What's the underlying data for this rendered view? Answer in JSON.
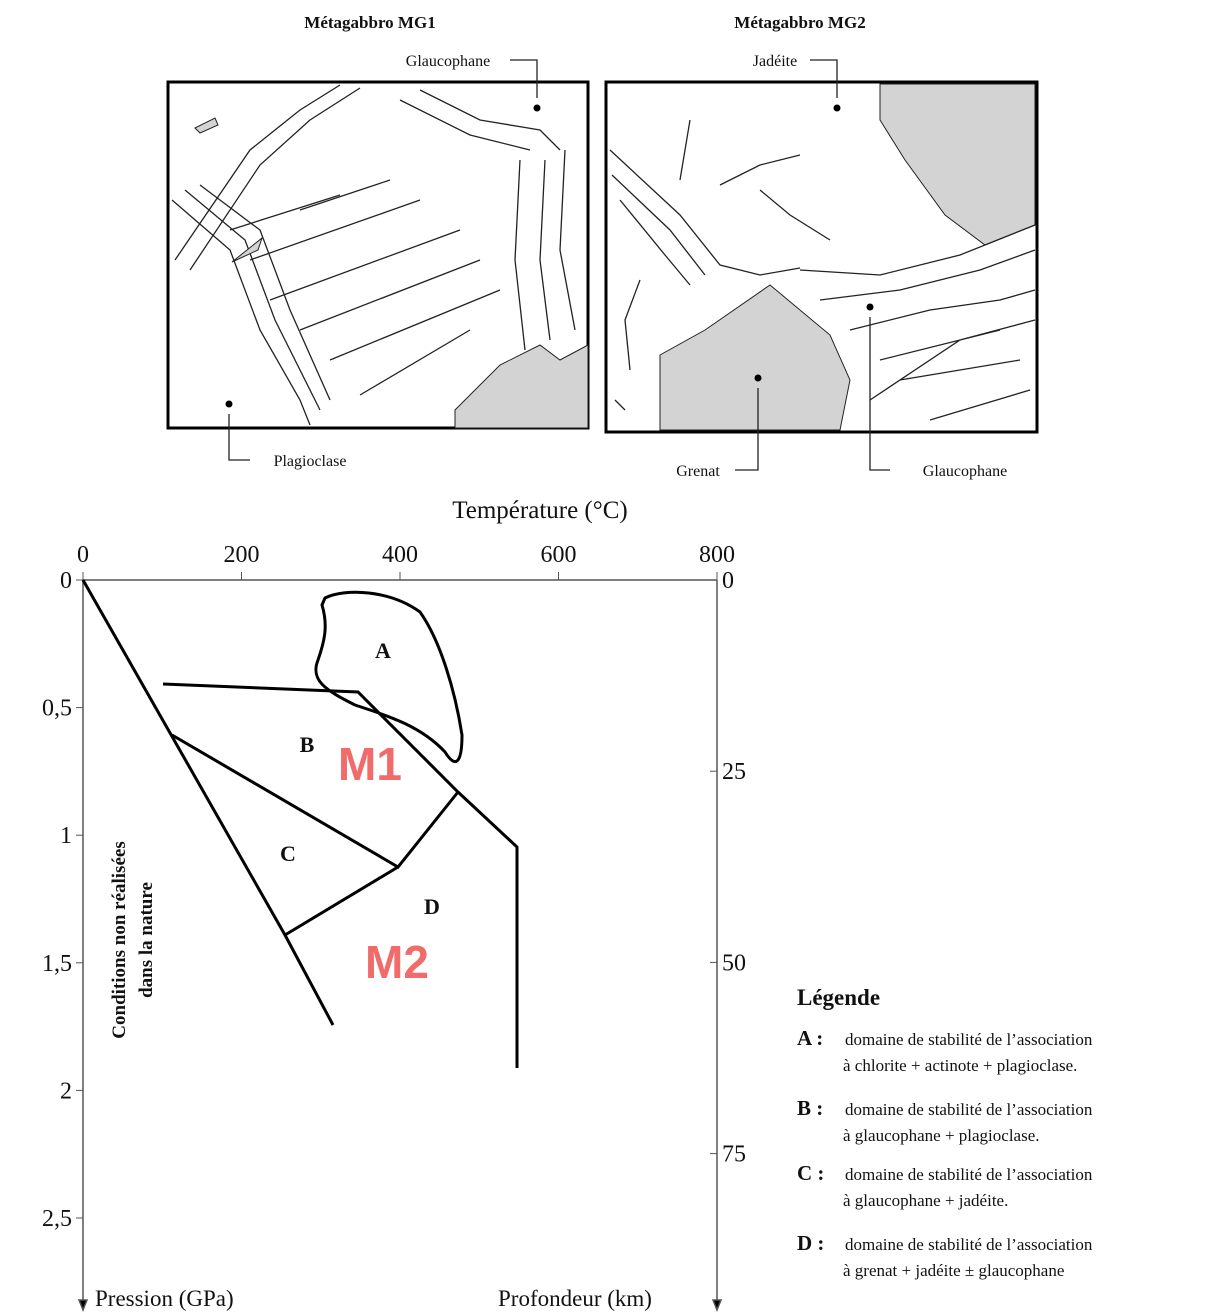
{
  "panels": [
    {
      "title": "Métagabbro MG1",
      "labels": [
        "Glaucophane",
        "Plagioclase"
      ]
    },
    {
      "title": "Métagabbro MG2",
      "labels": [
        "Jadéite",
        "Grenat",
        "Glaucophane"
      ]
    }
  ],
  "graph": {
    "x_axis_title": "Température (°C)",
    "x_ticks": [
      "0",
      "200",
      "400",
      "600",
      "800"
    ],
    "y_axis_title": "Pression (GPa)",
    "y_ticks": [
      "0",
      "0,5",
      "1",
      "1,5",
      "2",
      "2,5"
    ],
    "y2_axis_title": "Profondeur (km)",
    "y2_ticks": [
      "0",
      "25",
      "50",
      "75"
    ],
    "domains": [
      "A",
      "B",
      "C",
      "D"
    ],
    "annotations": [
      "M1",
      "M2"
    ],
    "note": [
      "Conditions non réalisées",
      "dans la nature"
    ]
  },
  "legend": {
    "title": "Légende",
    "items": [
      {
        "key": "A :",
        "lines": [
          "domaine de stabilité de l’association",
          "à chlorite + actinote + plagioclase."
        ]
      },
      {
        "key": "B :",
        "lines": [
          "domaine de stabilité de l’association",
          "à glaucophane + plagioclase."
        ]
      },
      {
        "key": "C :",
        "lines": [
          "domaine de stabilité de l’association",
          "à glaucophane + jadéite."
        ]
      },
      {
        "key": "D :",
        "lines": [
          "domaine de stabilité de l’association",
          "à grenat + jadéite ± glaucophane"
        ]
      }
    ]
  }
}
